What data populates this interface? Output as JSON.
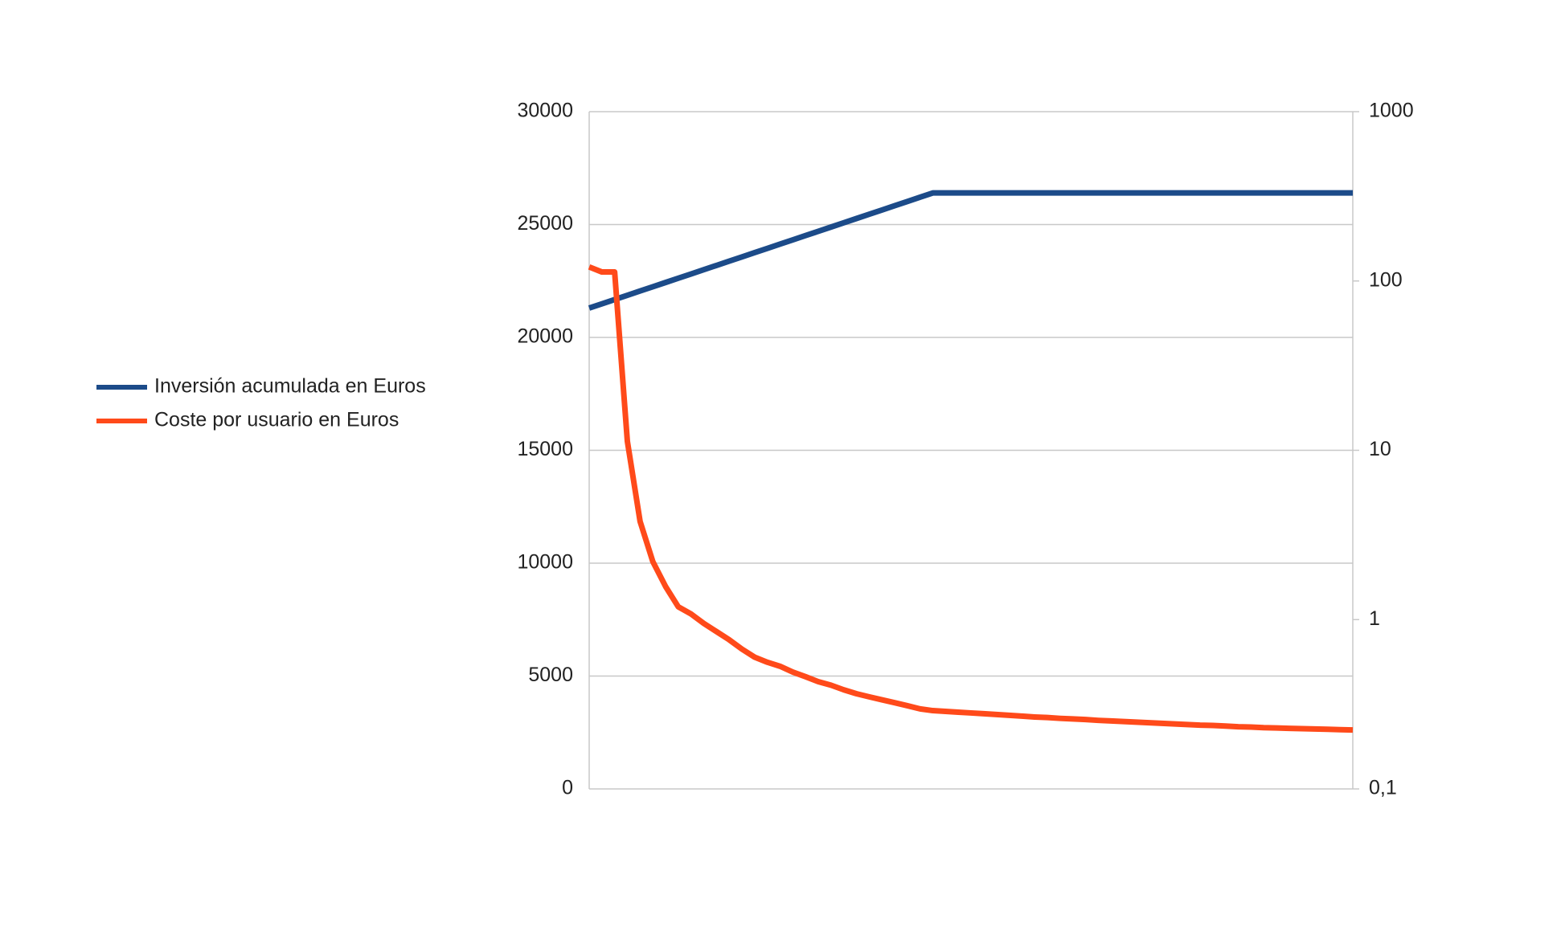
{
  "chart_data": {
    "type": "line",
    "categories": [
      null,
      null,
      null,
      null,
      null,
      null,
      null,
      null,
      null,
      null,
      null,
      null,
      null,
      null,
      null,
      null,
      null,
      null,
      null,
      null,
      null,
      null,
      null,
      null,
      null,
      null,
      null,
      null,
      null,
      null,
      null,
      null,
      null,
      null,
      null,
      null,
      null,
      null,
      null,
      null,
      null,
      null,
      null,
      null,
      null,
      null,
      null,
      null,
      null,
      null,
      null,
      null,
      null,
      null,
      null,
      null,
      null,
      null,
      null,
      null,
      null
    ],
    "series": [
      {
        "name": "Inversión acumulada en Euros",
        "color": "#1c4b89",
        "values": [
          21300,
          21489,
          21678,
          21867,
          22056,
          22244,
          22433,
          22622,
          22811,
          23000,
          23189,
          23378,
          23567,
          23756,
          23944,
          24133,
          24322,
          24511,
          24700,
          24889,
          25078,
          25267,
          25456,
          25644,
          25833,
          26022,
          26211,
          26400,
          26400,
          26400,
          26400,
          26400,
          26400,
          26400,
          26400,
          26400,
          26400,
          26400,
          26400,
          26400,
          26400,
          26400,
          26400,
          26400,
          26400,
          26400,
          26400,
          26400,
          26400,
          26400,
          26400,
          26400,
          26400,
          26400,
          26400,
          26400,
          26400,
          26400,
          26400,
          26400,
          26400
        ]
      },
      {
        "name": "Coste por usuario en Euros",
        "color": "#ff4a1a",
        "axis": "y2",
        "values": [
          121,
          113,
          113,
          11.3,
          3.8,
          2.2,
          1.57,
          1.19,
          1.08,
          0.95,
          0.85,
          0.76,
          0.67,
          0.6,
          0.56,
          0.53,
          0.49,
          0.46,
          0.43,
          0.41,
          0.385,
          0.365,
          0.35,
          0.336,
          0.323,
          0.31,
          0.297,
          0.29,
          0.287,
          0.284,
          0.281,
          0.278,
          0.275,
          0.272,
          0.269,
          0.266,
          0.264,
          0.261,
          0.259,
          0.257,
          0.254,
          0.252,
          0.25,
          0.248,
          0.246,
          0.244,
          0.242,
          0.24,
          0.238,
          0.237,
          0.235,
          0.233,
          0.232,
          0.23,
          0.229,
          0.228,
          0.227,
          0.226,
          0.225,
          0.224,
          0.223
        ]
      }
    ],
    "ylim": [
      0,
      30000
    ],
    "yticks": [
      0,
      5000,
      10000,
      15000,
      20000,
      25000,
      30000
    ],
    "y2lim": [
      0.1,
      1000
    ],
    "y2log": true,
    "y2ticks": [
      {
        "value": 0.1,
        "label": "0,1"
      },
      1,
      10,
      100,
      1000
    ],
    "grid": true,
    "legend": "left"
  }
}
